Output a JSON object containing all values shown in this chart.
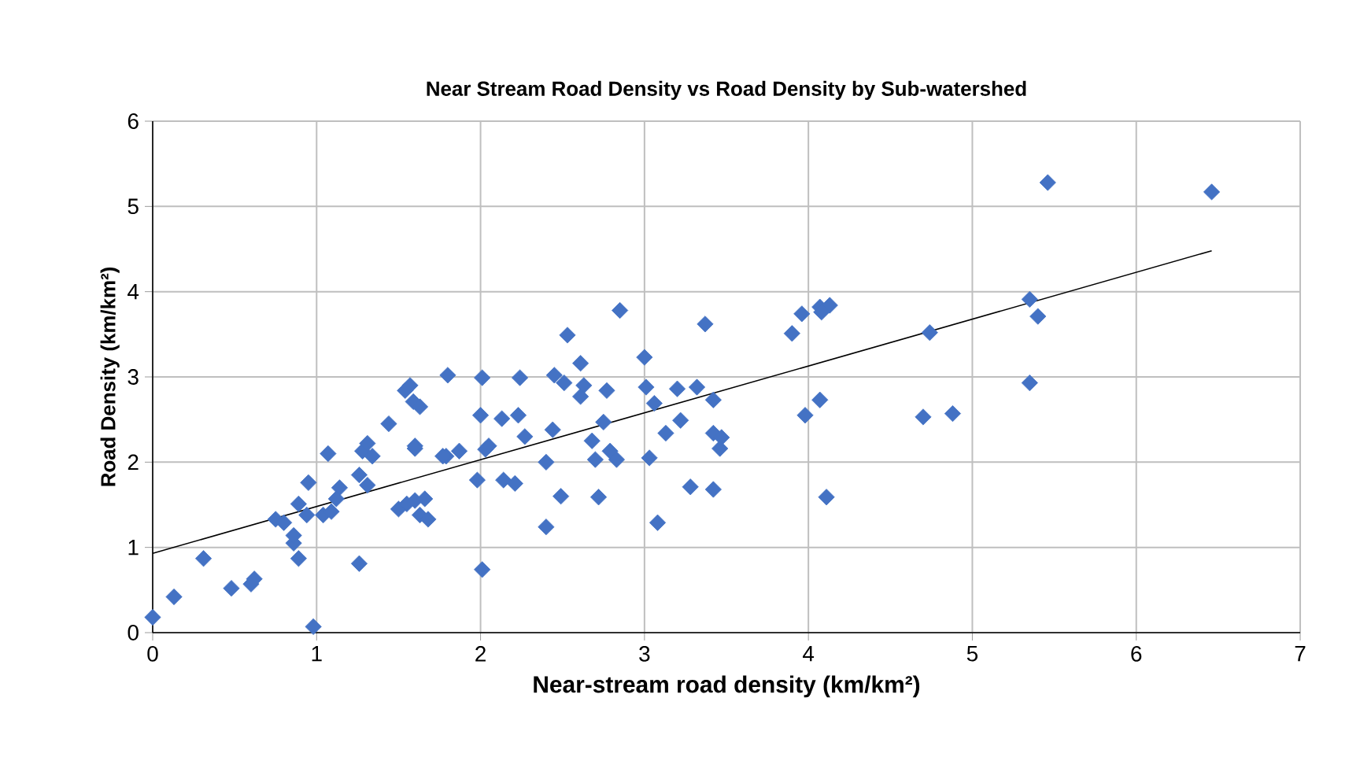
{
  "chart_data": {
    "type": "scatter",
    "title": "Near Stream Road Density vs Road Density by Sub-watershed",
    "xlabel": "Near-stream road density (km/km²)",
    "ylabel": "Road Density (km/km²)",
    "xlim": [
      0,
      7
    ],
    "ylim": [
      0,
      6
    ],
    "xticks": [
      0,
      1,
      2,
      3,
      4,
      5,
      6,
      7
    ],
    "yticks": [
      0,
      1,
      2,
      3,
      4,
      5,
      6
    ],
    "grid": true,
    "series": [
      {
        "color": "#4472c4",
        "marker": "diamond",
        "x": [
          0,
          0.13,
          0.31,
          0.48,
          0.62,
          0.6,
          0.98,
          0.89,
          0.86,
          0.86,
          0.75,
          0.8,
          0.89,
          0.95,
          0.94,
          1.04,
          1.09,
          1.14,
          1.12,
          1.07,
          1.26,
          1.28,
          1.26,
          1.31,
          1.34,
          1.31,
          1.5,
          1.55,
          1.6,
          1.66,
          1.63,
          1.68,
          1.6,
          1.79,
          1.87,
          1.98,
          2.01,
          1.44,
          1.54,
          1.57,
          1.59,
          1.63,
          1.6,
          1.8,
          1.77,
          2.01,
          2.0,
          2.03,
          2.24,
          2.13,
          2.23,
          2.05,
          2.27,
          2.44,
          2.4,
          2.14,
          2.21,
          2.49,
          2.4,
          2.85,
          2.53,
          2.61,
          2.45,
          2.51,
          2.63,
          2.61,
          2.77,
          2.75,
          2.68,
          2.7,
          2.79,
          2.83,
          2.72,
          3.0,
          3.01,
          3.06,
          3.13,
          3.22,
          3.2,
          3.32,
          3.42,
          3.37,
          3.42,
          3.47,
          3.46,
          3.03,
          3.28,
          3.42,
          3.08,
          3.9,
          3.96,
          4.07,
          4.13,
          4.08,
          3.98,
          4.07,
          4.11,
          4.74,
          4.7,
          4.88,
          5.35,
          5.4,
          5.35,
          5.46,
          6.46
        ],
        "values": [
          0.18,
          0.42,
          0.87,
          0.52,
          0.63,
          0.57,
          0.07,
          0.87,
          1.05,
          1.14,
          1.33,
          1.29,
          1.51,
          1.76,
          1.38,
          1.38,
          1.42,
          1.7,
          1.57,
          2.1,
          0.81,
          2.13,
          1.85,
          1.73,
          2.07,
          2.22,
          1.45,
          1.51,
          1.55,
          1.57,
          1.38,
          1.33,
          2.19,
          2.07,
          2.13,
          1.79,
          0.74,
          2.45,
          2.84,
          2.9,
          2.71,
          2.65,
          2.16,
          3.02,
          2.07,
          2.99,
          2.55,
          2.15,
          2.99,
          2.51,
          2.55,
          2.19,
          2.3,
          2.38,
          2.0,
          1.79,
          1.75,
          1.6,
          1.24,
          3.78,
          3.49,
          3.16,
          3.02,
          2.93,
          2.9,
          2.77,
          2.84,
          2.47,
          2.25,
          2.03,
          2.13,
          2.03,
          1.59,
          3.23,
          2.88,
          2.69,
          2.34,
          2.49,
          2.86,
          2.88,
          2.73,
          3.62,
          2.34,
          2.29,
          2.16,
          2.05,
          1.71,
          1.68,
          1.29,
          3.51,
          3.74,
          3.82,
          3.84,
          3.76,
          2.55,
          2.73,
          1.59,
          3.52,
          2.53,
          2.57,
          3.91,
          3.71,
          2.93,
          5.28,
          5.17
        ]
      },
      {
        "type": "line",
        "color": "#000000",
        "marker": "none",
        "line_style": "solid",
        "x": [
          0,
          6.46
        ],
        "values": [
          0.93,
          4.48
        ]
      }
    ]
  }
}
